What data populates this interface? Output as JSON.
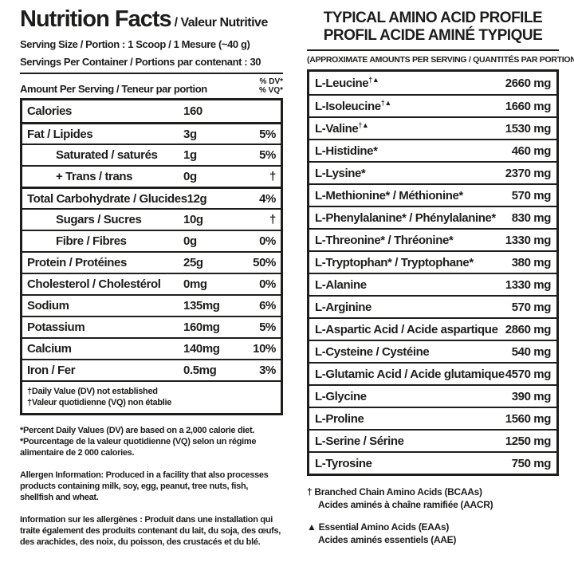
{
  "accent_color": "#1d1d1b",
  "background_color": "#ffffff",
  "left": {
    "title_en": "Nutrition Facts",
    "title_fr": " / Valeur Nutritive",
    "serving_size": "Serving Size / Portion : 1 Scoop / 1 Mesure (~40 g)",
    "servings_per_container": "Servings Per Container / Portions par contenant : 30",
    "amount_header": "Amount Per Serving / Teneur par portion",
    "dv_header_line1": "% DV*",
    "dv_header_line2": "% VQ*",
    "rows": [
      {
        "label": "Calories",
        "value": "160",
        "dv": ""
      },
      {
        "label": "Fat / Lipides",
        "value": "3g",
        "dv": "5%"
      },
      {
        "label": "Saturated / saturés",
        "value": "1g",
        "dv": "5%"
      },
      {
        "label": "+ Trans / trans",
        "value": "0g",
        "dv": "†"
      },
      {
        "label": "Total Carbohydrate / Glucides",
        "value": "12g",
        "dv": "4%"
      },
      {
        "label": "Sugars / Sucres",
        "value": "10g",
        "dv": "†"
      },
      {
        "label": "Fibre / Fibres",
        "value": "0g",
        "dv": "0%"
      },
      {
        "label": "Protein / Protéines",
        "value": "25g",
        "dv": "50%"
      },
      {
        "label": "Cholesterol / Cholestérol",
        "value": "0mg",
        "dv": "0%"
      },
      {
        "label": "Sodium",
        "value": "135mg",
        "dv": "6%"
      },
      {
        "label": "Potassium",
        "value": "160mg",
        "dv": "5%"
      },
      {
        "label": "Calcium",
        "value": "140mg",
        "dv": "10%"
      },
      {
        "label": "Iron / Fer",
        "value": "0.5mg",
        "dv": "3%"
      }
    ],
    "box_note_line1": "†Daily Value (DV) not established",
    "box_note_line2": "†Valeur quotidienne (VQ) non établie",
    "footnote_en": "*Percent Daily Values (DV) are based on a 2,000 calorie diet.",
    "footnote_fr": "*Pourcentage de la valeur quotidienne (VQ) selon un régime alimentaire de 2 000 calories.",
    "paragraph_en": "Allergen Information: Produced in a facility that also processes products containing milk, soy, egg, peanut, tree nuts, fish, shellfish and wheat.",
    "paragraph_fr": "Information sur les allergènes : Produit dans une installation qui traite également des produits contenant du lait, du soja, des œufs, des arachides, des noix, du poisson, des crustacés et du blé."
  },
  "right": {
    "title_line1": "TYPICAL AMINO ACID PROFILE",
    "title_line2": "PROFIL ACIDE AMINÉ TYPIQUE",
    "subtitle": "(APPROXIMATE AMOUNTS PER SERVING / QUANTITÉS PAR PORTION)",
    "rows": [
      {
        "label": "L-Leucine",
        "sup": "†▲",
        "value": "2660 mg"
      },
      {
        "label": "L-Isoleucine",
        "sup": "†▲",
        "value": "1660 mg"
      },
      {
        "label": "L-Valine",
        "sup": "†▲",
        "value": "1530 mg"
      },
      {
        "label": "L-Histidine*",
        "sup": "",
        "value": "460 mg"
      },
      {
        "label": "L-Lysine*",
        "sup": "",
        "value": "2370 mg"
      },
      {
        "label": "L-Methionine* / Méthionine*",
        "sup": "",
        "value": "570 mg"
      },
      {
        "label": "L-Phenylalanine* / Phénylalanine*",
        "sup": "",
        "value": "830 mg"
      },
      {
        "label": "L-Threonine* / Thréonine*",
        "sup": "",
        "value": "1330 mg"
      },
      {
        "label": "L-Tryptophan* / Tryptophane*",
        "sup": "",
        "value": "380 mg"
      },
      {
        "label": "L-Alanine",
        "sup": "",
        "value": "1330 mg"
      },
      {
        "label": "L-Arginine",
        "sup": "",
        "value": "570 mg"
      },
      {
        "label": "L-Aspartic Acid / Acide aspartique",
        "sup": "",
        "value": "2860 mg"
      },
      {
        "label": "L-Cysteine / Cystéine",
        "sup": "",
        "value": "540 mg"
      },
      {
        "label": "L-Glutamic Acid / Acide glutamique",
        "sup": "",
        "value": "4570 mg"
      },
      {
        "label": "L-Glycine",
        "sup": "",
        "value": "390 mg"
      },
      {
        "label": "L-Proline",
        "sup": "",
        "value": "1560 mg"
      },
      {
        "label": "L-Serine / Sérine",
        "sup": "",
        "value": "1250 mg"
      },
      {
        "label": "L-Tyrosine",
        "sup": "",
        "value": "750 mg"
      }
    ],
    "footnote1_line1": "† Branched Chain Amino Acids (BCAAs)",
    "footnote1_line2": "Acides aminés à chaîne ramifiée (AACR)",
    "footnote2_line1": "▲ Essential Amino Acids (EAAs)",
    "footnote2_line2": "Acides aminés essentiels (AAE)"
  }
}
